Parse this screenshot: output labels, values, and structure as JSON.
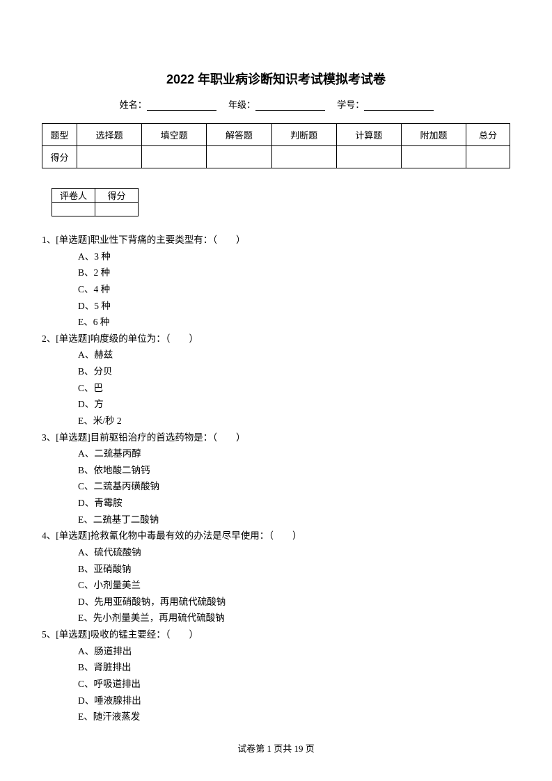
{
  "title": "2022 年职业病诊断知识考试模拟考试卷",
  "info": {
    "name_label": "姓名：",
    "grade_label": "年级：",
    "id_label": "学号："
  },
  "score_table": {
    "row1_label": "题型",
    "headers": [
      "选择题",
      "填空题",
      "解答题",
      "判断题",
      "计算题",
      "附加题",
      "总分"
    ],
    "row2_label": "得分"
  },
  "grader_table": {
    "col1": "评卷人",
    "col2": "得分"
  },
  "questions": [
    {
      "num": "1、",
      "stem": "[单选题]职业性下背痛的主要类型有：（　　）",
      "options": [
        "A、3 种",
        "B、2 种",
        "C、4 种",
        "D、5 种",
        "E、6 种"
      ]
    },
    {
      "num": "2、",
      "stem": "[单选题]响度级的单位为：（　　）",
      "options": [
        "A、赫兹",
        "B、分贝",
        "C、巴",
        "D、方",
        "E、米/秒 2"
      ]
    },
    {
      "num": "3、",
      "stem": "[单选题]目前驱铅治疗的首选药物是：（　　）",
      "options": [
        "A、二巯基丙醇",
        "B、依地酸二钠钙",
        "C、二巯基丙磺酸钠",
        "D、青霉胺",
        "E、二巯基丁二酸钠"
      ]
    },
    {
      "num": "4、",
      "stem": "[单选题]抢救氰化物中毒最有效的办法是尽早使用：（　　）",
      "options": [
        "A、硫代硫酸钠",
        "B、亚硝酸钠",
        "C、小剂量美兰",
        "D、先用亚硝酸钠，再用硫代硫酸钠",
        "E、先小剂量美兰，再用硫代硫酸钠"
      ]
    },
    {
      "num": "5、",
      "stem": "[单选题]吸收的锰主要经：（　　）",
      "options": [
        "A、肠道排出",
        "B、肾脏排出",
        "C、呼吸道排出",
        "D、唾液腺排出",
        "E、随汗液蒸发"
      ]
    }
  ],
  "footer": {
    "text": "试卷第 1 页共 19 页"
  }
}
